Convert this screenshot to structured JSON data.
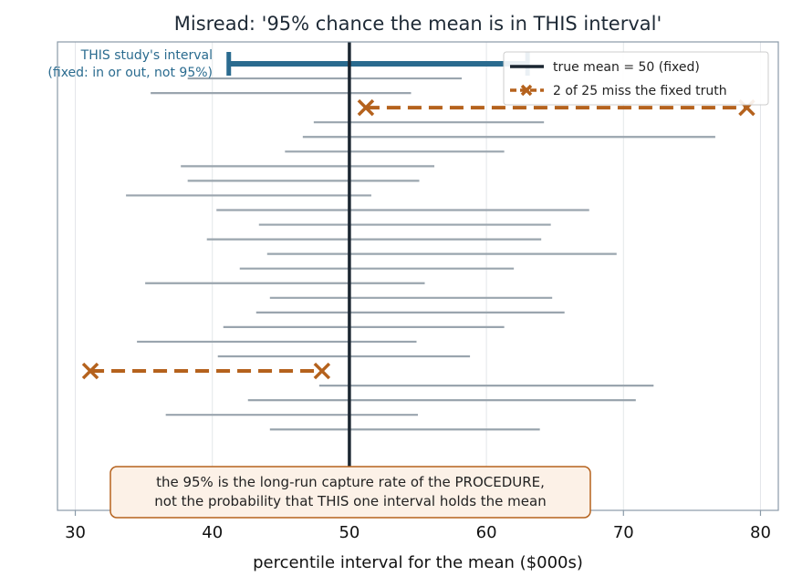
{
  "chart_data": {
    "type": "interval",
    "title": "Misread: '95% chance the mean is in THIS interval'",
    "xlabel": "percentile interval for the mean ($000s)",
    "ylabel": "",
    "xlim": [
      28.7,
      81.3
    ],
    "x_ticks": [
      30,
      40,
      50,
      60,
      70,
      80
    ],
    "x_tick_labels": [
      "30",
      "40",
      "50",
      "60",
      "70",
      "80"
    ],
    "grid": "vertical",
    "true_mean": 50,
    "this_interval": {
      "low": 41.2,
      "high": 63.0
    },
    "intervals": [
      {
        "low": 41.2,
        "high": 63.0,
        "misses": false
      },
      {
        "low": 38.2,
        "high": 58.2,
        "misses": false
      },
      {
        "low": 35.5,
        "high": 54.5,
        "misses": false
      },
      {
        "low": 51.2,
        "high": 79.0,
        "misses": true
      },
      {
        "low": 47.4,
        "high": 64.2,
        "misses": false
      },
      {
        "low": 46.6,
        "high": 76.7,
        "misses": false
      },
      {
        "low": 45.3,
        "high": 61.3,
        "misses": false
      },
      {
        "low": 37.7,
        "high": 56.2,
        "misses": false
      },
      {
        "low": 38.2,
        "high": 55.1,
        "misses": false
      },
      {
        "low": 33.7,
        "high": 51.6,
        "misses": false
      },
      {
        "low": 40.3,
        "high": 67.5,
        "misses": false
      },
      {
        "low": 43.4,
        "high": 64.7,
        "misses": false
      },
      {
        "low": 39.6,
        "high": 64.0,
        "misses": false
      },
      {
        "low": 44.0,
        "high": 69.5,
        "misses": false
      },
      {
        "low": 42.0,
        "high": 62.0,
        "misses": false
      },
      {
        "low": 35.1,
        "high": 55.5,
        "misses": false
      },
      {
        "low": 44.2,
        "high": 64.8,
        "misses": false
      },
      {
        "low": 43.2,
        "high": 65.7,
        "misses": false
      },
      {
        "low": 40.8,
        "high": 61.3,
        "misses": false
      },
      {
        "low": 34.5,
        "high": 54.9,
        "misses": false
      },
      {
        "low": 40.4,
        "high": 58.8,
        "misses": false
      },
      {
        "low": 31.1,
        "high": 48.0,
        "misses": true
      },
      {
        "low": 47.8,
        "high": 72.2,
        "misses": false
      },
      {
        "low": 42.6,
        "high": 70.9,
        "misses": false
      },
      {
        "low": 36.6,
        "high": 55.0,
        "misses": false
      },
      {
        "low": 44.2,
        "high": 63.9,
        "misses": false
      }
    ],
    "this_label_line1": "THIS study's interval",
    "this_label_line2": "(fixed: in or out, not 95%)",
    "legend": {
      "placement": "top-right",
      "entries": [
        {
          "label": "true mean = 50 (fixed)",
          "kind": "line"
        },
        {
          "label": "2 of 25 miss the fixed truth",
          "kind": "miss"
        }
      ]
    },
    "note": {
      "line1": "the 95% is the long-run capture rate of the PROCEDURE,",
      "line2": "not the probability that THIS one interval holds the mean"
    },
    "colors": {
      "this_interval": "#2a6b8f",
      "covering": "#9aa5ae",
      "miss": "#b5621d",
      "true_mean": "#1b2631",
      "axes": "#8a9aa8",
      "grid": "#e3e6e9",
      "note_bg": "#fcf1e7",
      "note_border": "#b5621d",
      "title": "#1e2a36"
    }
  }
}
